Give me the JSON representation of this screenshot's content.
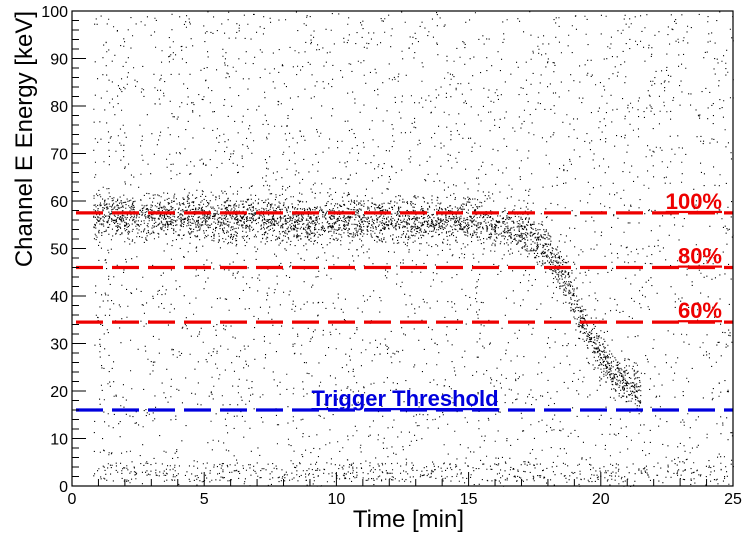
{
  "chart_data": {
    "type": "scatter",
    "xlabel": "Time [min]",
    "ylabel": "Channel E Energy [keV]",
    "xlim": [
      0,
      25
    ],
    "ylim": [
      0,
      100
    ],
    "x_ticks": [
      0,
      5,
      10,
      15,
      20,
      25
    ],
    "y_ticks": [
      0,
      10,
      20,
      30,
      40,
      50,
      60,
      70,
      80,
      90,
      100
    ],
    "grid": false,
    "reference_lines": [
      {
        "label": "100%",
        "y": 57.5,
        "color": "#ee0000"
      },
      {
        "label": "80%",
        "y": 46,
        "color": "#ee0000"
      },
      {
        "label": "60%",
        "y": 34.5,
        "color": "#ee0000"
      },
      {
        "label": "Trigger Threshold",
        "y": 16,
        "color": "#0000dd"
      }
    ],
    "point_distribution": {
      "marker_color": "#000000",
      "band_center": [
        [
          0.8,
          57
        ],
        [
          5,
          56.5
        ],
        [
          10,
          56
        ],
        [
          15,
          56
        ],
        [
          17,
          54
        ],
        [
          18,
          50
        ],
        [
          18.8,
          42
        ],
        [
          19.5,
          32
        ],
        [
          20.3,
          25
        ],
        [
          21,
          21.5
        ],
        [
          21.5,
          20
        ]
      ],
      "band_width": 4.5,
      "band_x_range": [
        0.8,
        21.5
      ],
      "band_points": 3600,
      "background_x_range": [
        0.8,
        25
      ],
      "background_y_range": [
        0,
        100
      ],
      "background_points": 3300,
      "low_energy_y_range": [
        1,
        5
      ],
      "low_energy_points": 500
    }
  }
}
